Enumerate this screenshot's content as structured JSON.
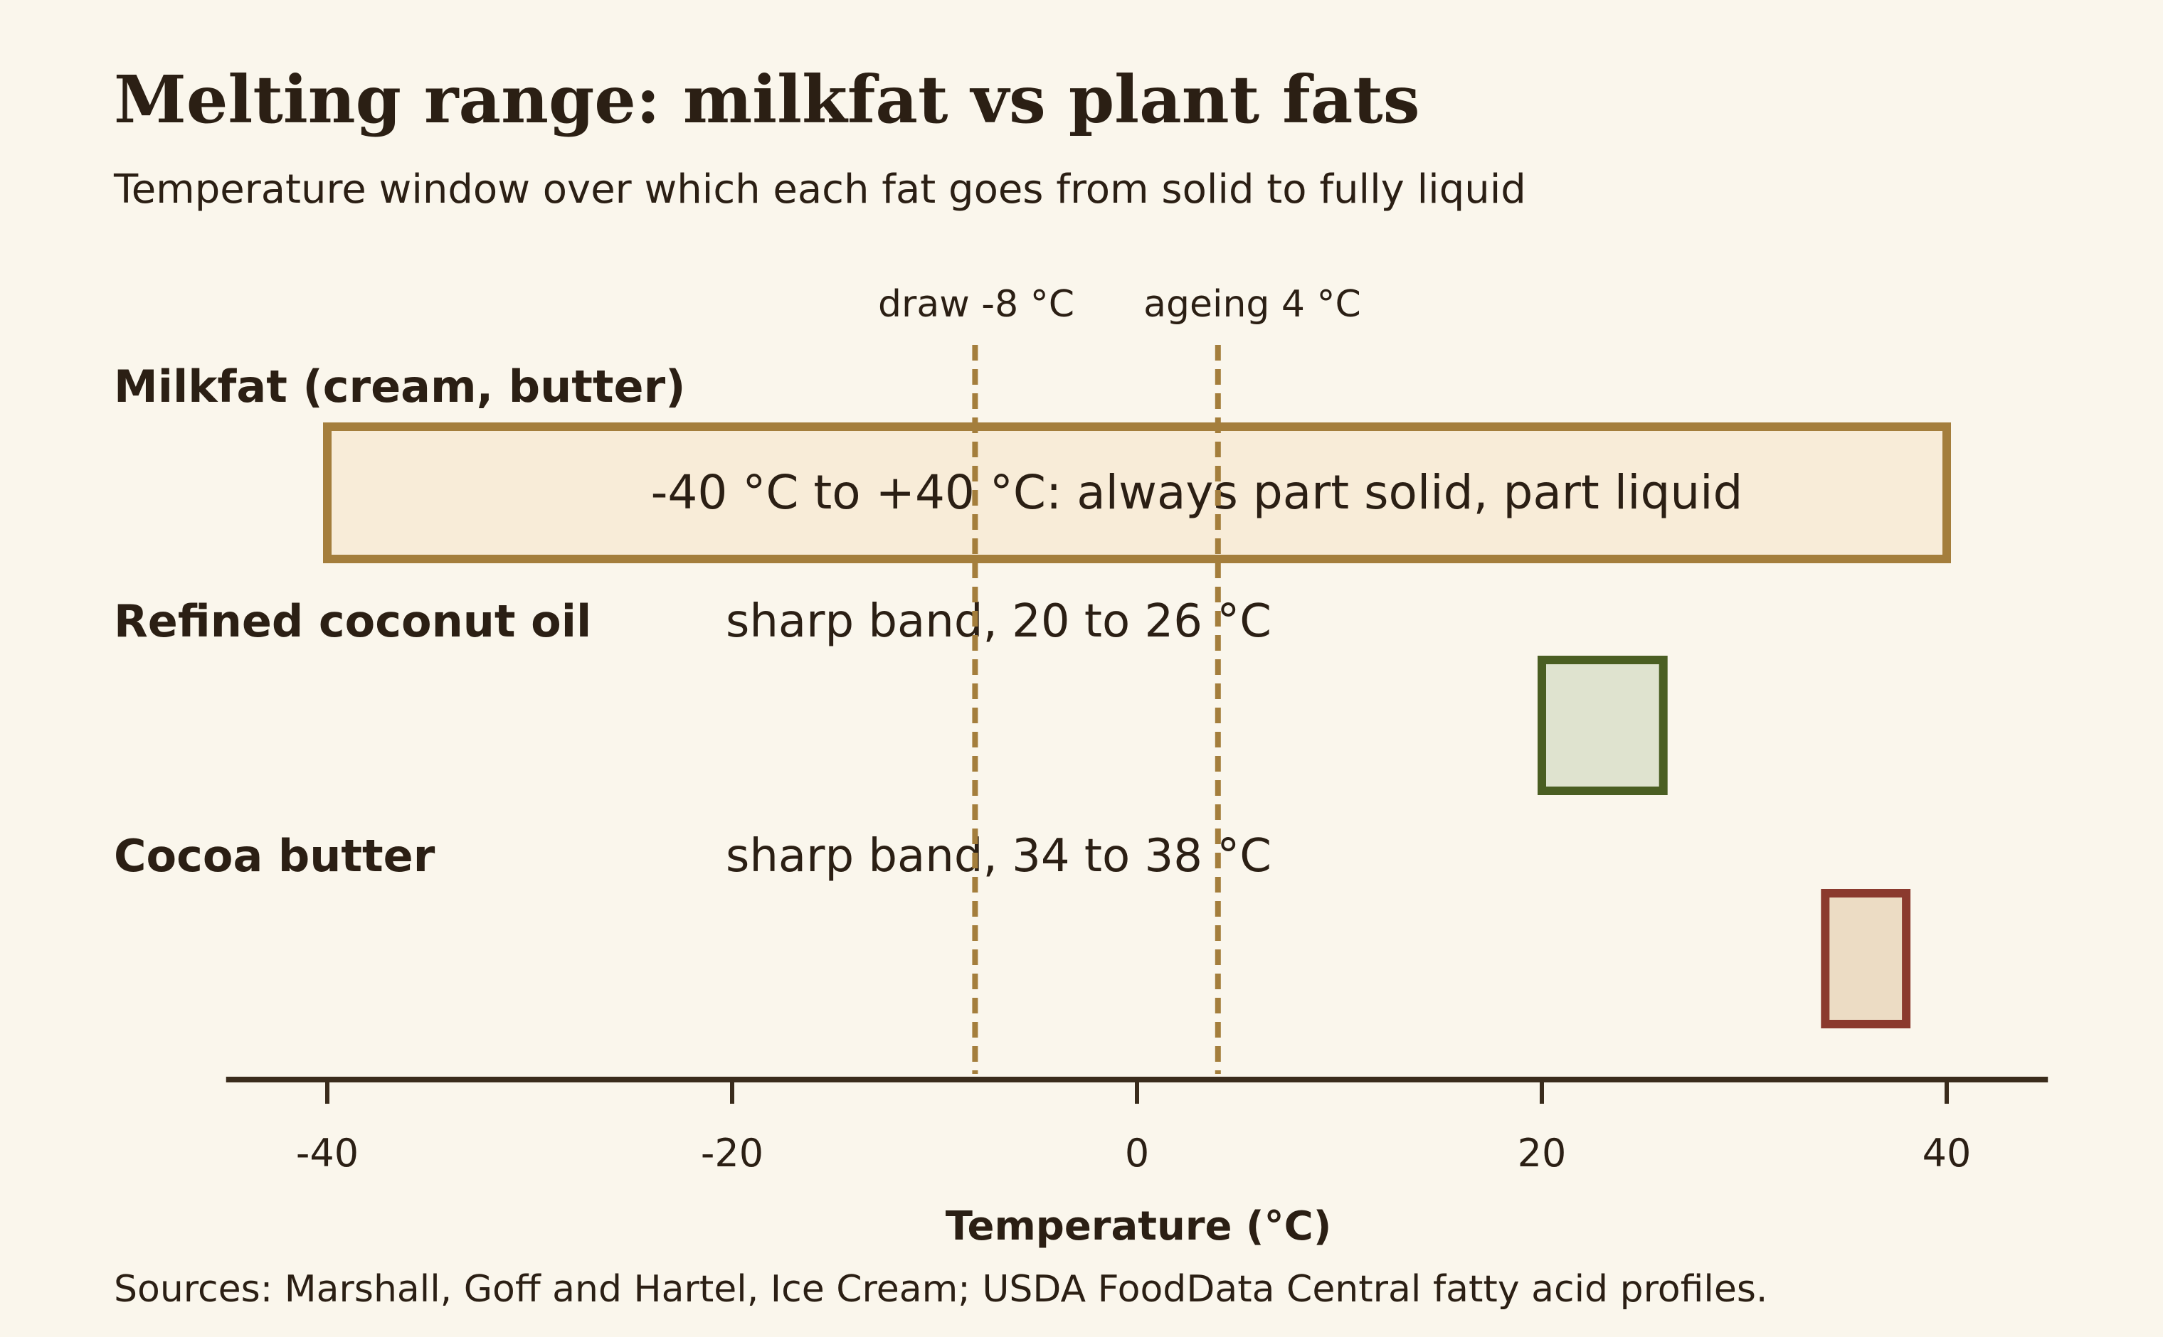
{
  "chart_data": {
    "type": "range-bar",
    "title": "Melting range: milkfat vs plant fats",
    "subtitle": "Temperature window over which each fat goes from solid to fully liquid",
    "xlabel": "Temperature (°C)",
    "xlim": [
      -45,
      45
    ],
    "xticks": [
      -40,
      -20,
      0,
      20,
      40
    ],
    "xtick_labels": [
      "-40",
      "-20",
      "0",
      "20",
      "40"
    ],
    "rows": [
      {
        "label": "Milkfat (cream, butter)",
        "start": -40,
        "end": 40,
        "bar_label": "-40 °C to +40 °C: always part solid, part liquid",
        "note": "",
        "stroke": "#a47e3c",
        "fill": "#f8ecd8"
      },
      {
        "label": "Refined coconut oil",
        "start": 20,
        "end": 26,
        "bar_label": "",
        "note": "sharp band, 20 to 26 °C",
        "stroke": "#4a5e22",
        "fill": "#dfe3cf"
      },
      {
        "label": "Cocoa butter",
        "start": 34,
        "end": 38,
        "bar_label": "",
        "note": "sharp band, 34 to 38 °C",
        "stroke": "#8b3a2e",
        "fill": "#ecdcc4"
      }
    ],
    "reference_lines": [
      {
        "x": -8,
        "label": "draw -8 °C",
        "color": "#a47e3c"
      },
      {
        "x": 4,
        "label": "ageing 4 °C",
        "color": "#a47e3c"
      }
    ],
    "source": "Sources: Marshall, Goff and Hartel, Ice Cream; USDA FoodData Central fatty acid profiles.",
    "colors": {
      "background": "#faf6ec",
      "axis": "#3a2c1c",
      "text": "#2b1f14"
    }
  }
}
